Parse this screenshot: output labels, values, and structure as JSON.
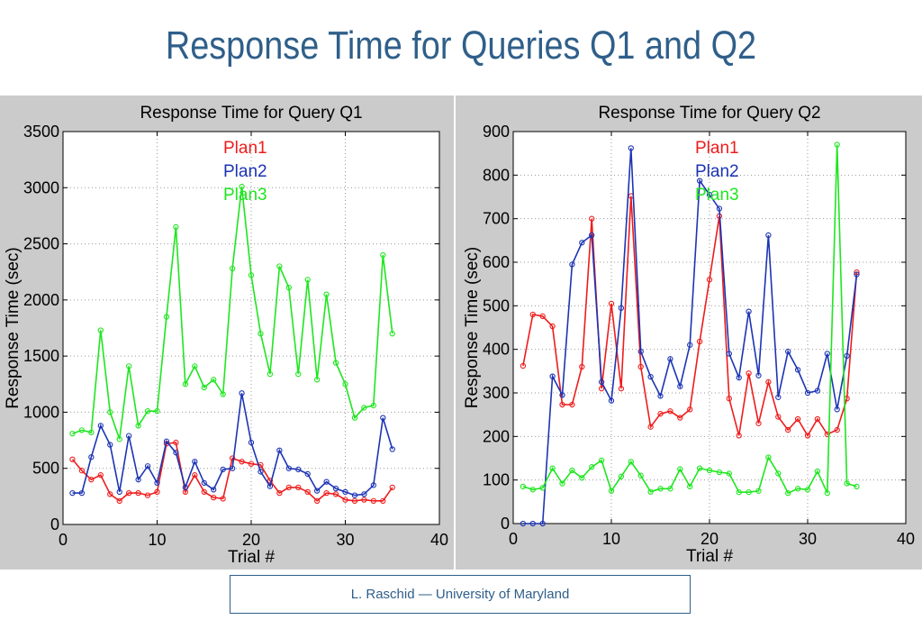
{
  "slide": {
    "title": "Response Time for Queries  Q1 and Q2",
    "footer": "L. Raschid — University of Maryland"
  },
  "chart_data": [
    {
      "type": "line",
      "title": "Response Time for Query Q1",
      "xlabel": "Trial #",
      "ylabel": "Response Time (sec)",
      "xlim": [
        0,
        40
      ],
      "ylim": [
        0,
        3500
      ],
      "xticks": [
        0,
        10,
        20,
        30,
        40
      ],
      "yticks": [
        0,
        500,
        1000,
        1500,
        2000,
        2500,
        3000,
        3500
      ],
      "grid": true,
      "legend_position": "top-center",
      "x": [
        1,
        2,
        3,
        4,
        5,
        6,
        7,
        8,
        9,
        10,
        11,
        12,
        13,
        14,
        15,
        16,
        17,
        18,
        19,
        20,
        21,
        22,
        23,
        24,
        25,
        26,
        27,
        28,
        29,
        30,
        31,
        32,
        33,
        34,
        35
      ],
      "series": [
        {
          "name": "Plan1",
          "color": "#ee1c1c",
          "values": [
            580,
            480,
            400,
            440,
            270,
            210,
            280,
            280,
            260,
            290,
            720,
            730,
            290,
            440,
            290,
            240,
            230,
            590,
            560,
            540,
            530,
            390,
            280,
            330,
            330,
            290,
            210,
            280,
            270,
            220,
            210,
            220,
            210,
            210,
            330
          ]
        },
        {
          "name": "Plan2",
          "color": "#1c34b4",
          "values": [
            280,
            280,
            600,
            880,
            710,
            290,
            790,
            400,
            520,
            370,
            740,
            640,
            330,
            560,
            370,
            310,
            490,
            500,
            1170,
            730,
            470,
            340,
            660,
            500,
            490,
            450,
            300,
            380,
            320,
            290,
            260,
            270,
            350,
            950,
            670
          ]
        },
        {
          "name": "Plan3",
          "color": "#1ee61e",
          "values": [
            810,
            840,
            820,
            1730,
            1000,
            760,
            1410,
            880,
            1010,
            1010,
            1850,
            2650,
            1250,
            1410,
            1220,
            1290,
            1160,
            2280,
            3010,
            2220,
            1700,
            1340,
            2300,
            2110,
            1340,
            2180,
            1290,
            2050,
            1440,
            1250,
            950,
            1040,
            1060,
            2400,
            1700
          ]
        }
      ]
    },
    {
      "type": "line",
      "title": "Response Time for Query Q2",
      "xlabel": "Trial #",
      "ylabel": "Response Time (sec)",
      "xlim": [
        0,
        40
      ],
      "ylim": [
        0,
        900
      ],
      "xticks": [
        0,
        10,
        20,
        30,
        40
      ],
      "yticks": [
        0,
        100,
        200,
        300,
        400,
        500,
        600,
        700,
        800,
        900
      ],
      "grid": true,
      "legend_position": "top-center",
      "x": [
        1,
        2,
        3,
        4,
        5,
        6,
        7,
        8,
        9,
        10,
        11,
        12,
        13,
        14,
        15,
        16,
        17,
        18,
        19,
        20,
        21,
        22,
        23,
        24,
        25,
        26,
        27,
        28,
        29,
        30,
        31,
        32,
        33,
        34,
        35
      ],
      "series": [
        {
          "name": "Plan1",
          "color": "#ee1c1c",
          "values": [
            362,
            480,
            476,
            453,
            273,
            273,
            360,
            700,
            310,
            505,
            310,
            752,
            360,
            222,
            252,
            258,
            243,
            262,
            418,
            560,
            706,
            287,
            202,
            345,
            230,
            325,
            245,
            215,
            240,
            202,
            240,
            205,
            215,
            287,
            577
          ]
        },
        {
          "name": "Plan2",
          "color": "#1c34b4",
          "values": [
            0,
            0,
            0,
            338,
            295,
            595,
            645,
            662,
            325,
            282,
            495,
            862,
            395,
            337,
            293,
            378,
            315,
            410,
            787,
            755,
            723,
            390,
            335,
            487,
            340,
            662,
            290,
            395,
            353,
            300,
            305,
            390,
            262,
            385,
            572
          ]
        },
        {
          "name": "Plan3",
          "color": "#1ee61e",
          "values": [
            85,
            78,
            82,
            127,
            92,
            122,
            105,
            130,
            145,
            75,
            108,
            142,
            110,
            73,
            80,
            80,
            125,
            85,
            127,
            122,
            118,
            115,
            72,
            72,
            75,
            152,
            115,
            70,
            80,
            78,
            120,
            70,
            870,
            92,
            85
          ]
        }
      ]
    }
  ]
}
